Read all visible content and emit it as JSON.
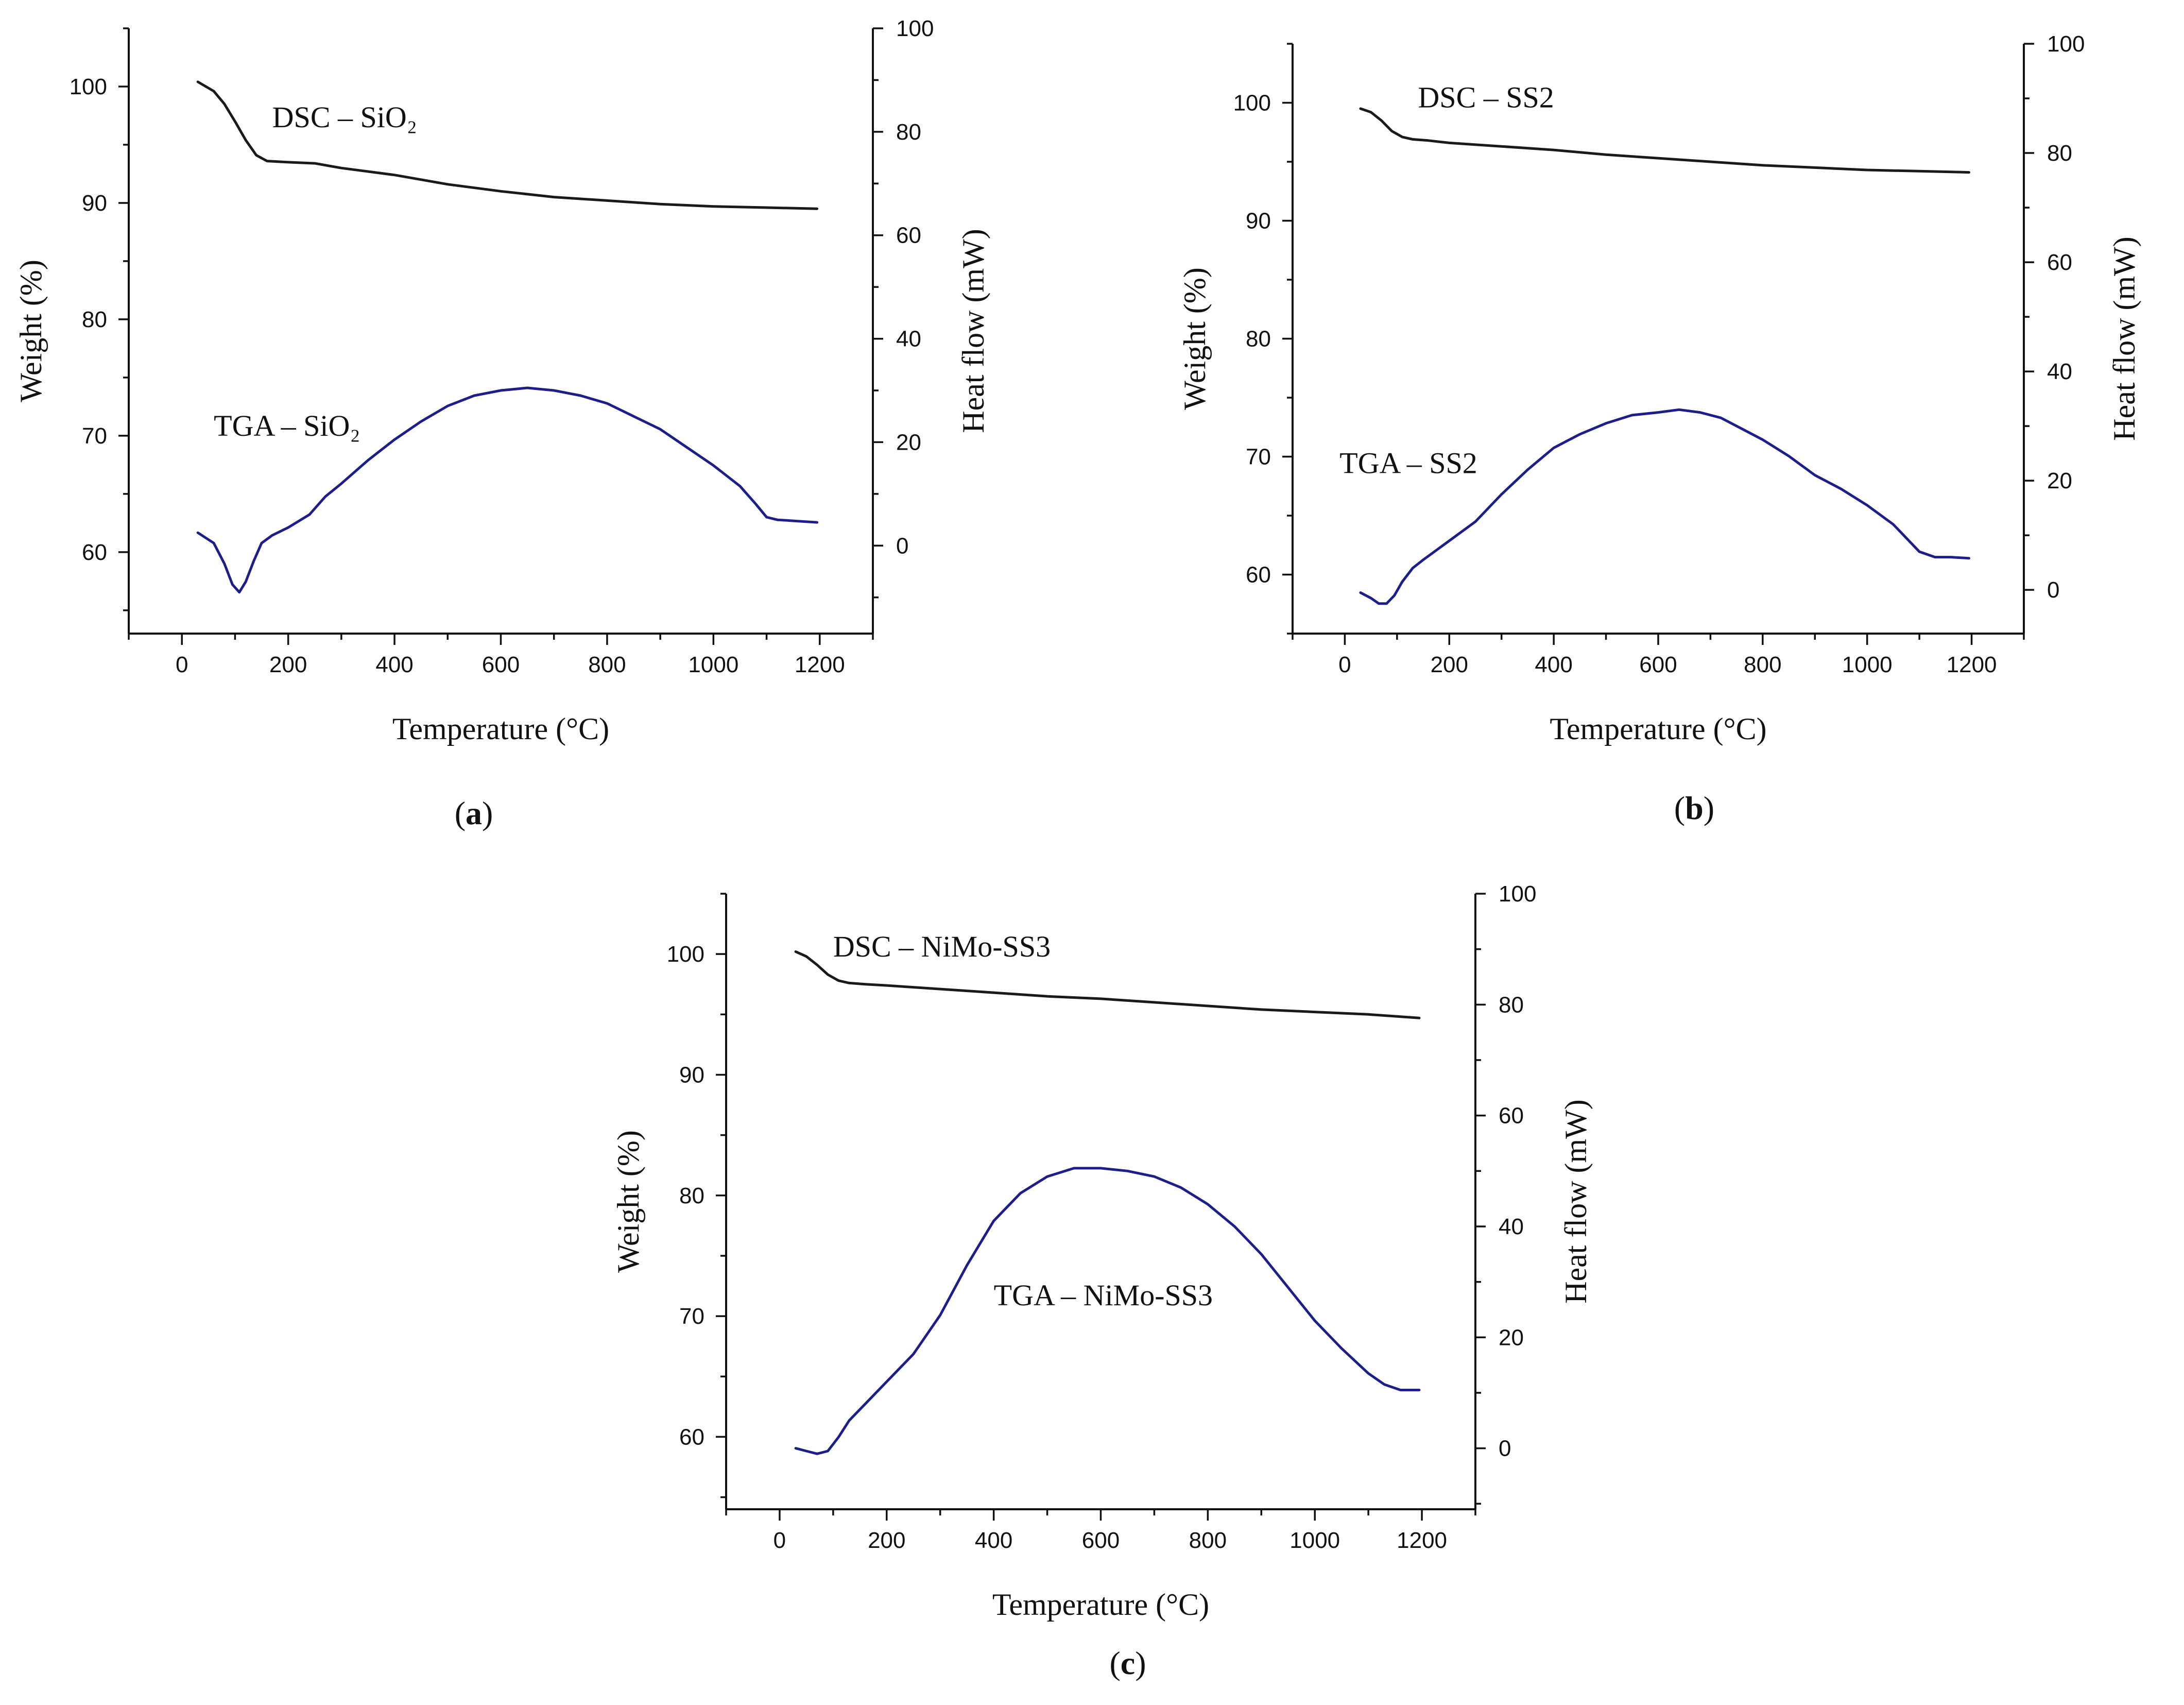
{
  "figure": {
    "colors": {
      "dsc": "#1a1a1a",
      "tga": "#1c1f8a",
      "axis": "#111111"
    },
    "chart_data": [
      {
        "id": "a",
        "type": "line",
        "panel_label": {
          "open": "(",
          "letter": "a",
          "close": ")"
        },
        "xlabel": "Temperature (°C)",
        "ylabel_left": "Weight (%)",
        "ylabel_right": "Heat flow (mW)",
        "xlim": [
          -100,
          1300
        ],
        "ylim_left": [
          53,
          105
        ],
        "ylim_right": [
          -17,
          100
        ],
        "x_ticks": [
          0,
          200,
          400,
          600,
          800,
          1000,
          1200
        ],
        "y_left_ticks": [
          60,
          70,
          80,
          90,
          100
        ],
        "y_right_ticks": [
          0,
          20,
          40,
          60,
          80,
          100
        ],
        "annotations": [
          {
            "text": "DSC – SiO₂",
            "series": "DSC",
            "x": 170,
            "y": 96.5
          },
          {
            "text": "TGA – SiO₂",
            "series": "TGA",
            "x": 60,
            "y": 70
          }
        ],
        "series": [
          {
            "name": "DSC",
            "axis": "left",
            "x": [
              30,
              60,
              80,
              100,
              120,
              140,
              160,
              200,
              250,
              300,
              400,
              500,
              600,
              700,
              800,
              900,
              1000,
              1100,
              1195
            ],
            "y": [
              100.4,
              99.6,
              98.5,
              97.0,
              95.4,
              94.1,
              93.6,
              93.5,
              93.4,
              93.0,
              92.4,
              91.6,
              91.0,
              90.5,
              90.2,
              89.9,
              89.7,
              89.6,
              89.5
            ]
          },
          {
            "name": "TGA",
            "axis": "right",
            "x": [
              30,
              60,
              80,
              95,
              108,
              120,
              135,
              150,
              170,
              200,
              240,
              270,
              300,
              350,
              400,
              450,
              500,
              550,
              600,
              650,
              700,
              750,
              800,
              850,
              900,
              950,
              1000,
              1050,
              1080,
              1100,
              1120,
              1150,
              1195
            ],
            "y": [
              2.5,
              0.5,
              -3.5,
              -7.5,
              -9.0,
              -7.0,
              -3.0,
              0.5,
              2.0,
              3.5,
              6.0,
              9.5,
              12.0,
              16.5,
              20.5,
              24.0,
              27.0,
              29.0,
              30.0,
              30.5,
              30.0,
              29.0,
              27.5,
              25.0,
              22.5,
              19.0,
              15.5,
              11.5,
              8.0,
              5.5,
              5.0,
              4.8,
              4.5
            ]
          }
        ]
      },
      {
        "id": "b",
        "type": "line",
        "panel_label": {
          "open": "(",
          "letter": "b",
          "close": ")"
        },
        "xlabel": "Temperature (°C)",
        "ylabel_left": "Weight (%)",
        "ylabel_right": "Heat flow (mW)",
        "xlim": [
          -100,
          1300
        ],
        "ylim_left": [
          55,
          105
        ],
        "ylim_right": [
          -8,
          100
        ],
        "x_ticks": [
          0,
          200,
          400,
          600,
          800,
          1000,
          1200
        ],
        "y_left_ticks": [
          60,
          70,
          80,
          90,
          100
        ],
        "y_right_ticks": [
          0,
          20,
          40,
          60,
          80,
          100
        ],
        "annotations": [
          {
            "text": "DSC – SS2",
            "series": "DSC",
            "x": 140,
            "y": 99.6
          },
          {
            "text": "TGA – SS2",
            "series": "TGA",
            "x": -10,
            "y": 68.6
          }
        ],
        "series": [
          {
            "name": "DSC",
            "axis": "left",
            "x": [
              30,
              50,
              70,
              90,
              110,
              130,
              160,
              200,
              300,
              400,
              500,
              600,
              700,
              800,
              900,
              1000,
              1100,
              1195
            ],
            "y": [
              99.5,
              99.2,
              98.5,
              97.6,
              97.1,
              96.9,
              96.8,
              96.6,
              96.3,
              96.0,
              95.6,
              95.3,
              95.0,
              94.7,
              94.5,
              94.3,
              94.2,
              94.1
            ]
          },
          {
            "name": "TGA",
            "axis": "right",
            "x": [
              30,
              50,
              65,
              80,
              95,
              110,
              130,
              150,
              200,
              250,
              300,
              350,
              400,
              450,
              500,
              550,
              600,
              640,
              680,
              720,
              760,
              800,
              850,
              900,
              950,
              1000,
              1050,
              1100,
              1130,
              1160,
              1195
            ],
            "y": [
              -0.5,
              -1.5,
              -2.5,
              -2.5,
              -1.0,
              1.5,
              4.0,
              5.5,
              9.0,
              12.5,
              17.5,
              22.0,
              26.0,
              28.5,
              30.5,
              32.0,
              32.5,
              33.0,
              32.5,
              31.5,
              29.5,
              27.5,
              24.5,
              21.0,
              18.5,
              15.5,
              12.0,
              7.0,
              6.0,
              6.0,
              5.8
            ]
          }
        ]
      },
      {
        "id": "c",
        "type": "line",
        "panel_label": {
          "open": "(",
          "letter": "c",
          "close": ")"
        },
        "xlabel": "Temperature (°C)",
        "ylabel_left": "Weight (%)",
        "ylabel_right": "Heat flow (mW)",
        "xlim": [
          -100,
          1300
        ],
        "ylim_left": [
          54,
          105
        ],
        "ylim_right": [
          -11,
          100
        ],
        "x_ticks": [
          0,
          200,
          400,
          600,
          800,
          1000,
          1200
        ],
        "y_left_ticks": [
          60,
          70,
          80,
          90,
          100
        ],
        "y_right_ticks": [
          0,
          20,
          40,
          60,
          80,
          100
        ],
        "annotations": [
          {
            "text": "DSC – NiMo-SS3",
            "series": "DSC",
            "x": 100,
            "y": 99.8
          },
          {
            "text": "TGA – NiMo-SS3",
            "series": "TGA",
            "x": 400,
            "y": 70.9
          }
        ],
        "series": [
          {
            "name": "DSC",
            "axis": "left",
            "x": [
              30,
              50,
              70,
              90,
              110,
              130,
              160,
              200,
              300,
              400,
              500,
              600,
              700,
              800,
              900,
              1000,
              1100,
              1195
            ],
            "y": [
              100.2,
              99.8,
              99.1,
              98.3,
              97.8,
              97.6,
              97.5,
              97.4,
              97.1,
              96.8,
              96.5,
              96.3,
              96.0,
              95.7,
              95.4,
              95.2,
              95.0,
              94.7
            ]
          },
          {
            "name": "TGA",
            "axis": "right",
            "x": [
              30,
              50,
              70,
              90,
              110,
              130,
              150,
              200,
              250,
              300,
              350,
              400,
              450,
              500,
              550,
              600,
              650,
              700,
              750,
              800,
              850,
              900,
              950,
              1000,
              1050,
              1100,
              1130,
              1160,
              1195
            ],
            "y": [
              0.0,
              -0.5,
              -1.0,
              -0.5,
              2.0,
              5.0,
              7.0,
              12.0,
              17.0,
              24.0,
              33.0,
              41.0,
              46.0,
              49.0,
              50.5,
              50.5,
              50.0,
              49.0,
              47.0,
              44.0,
              40.0,
              35.0,
              29.0,
              23.0,
              18.0,
              13.5,
              11.5,
              10.5,
              10.5
            ]
          }
        ]
      }
    ]
  }
}
